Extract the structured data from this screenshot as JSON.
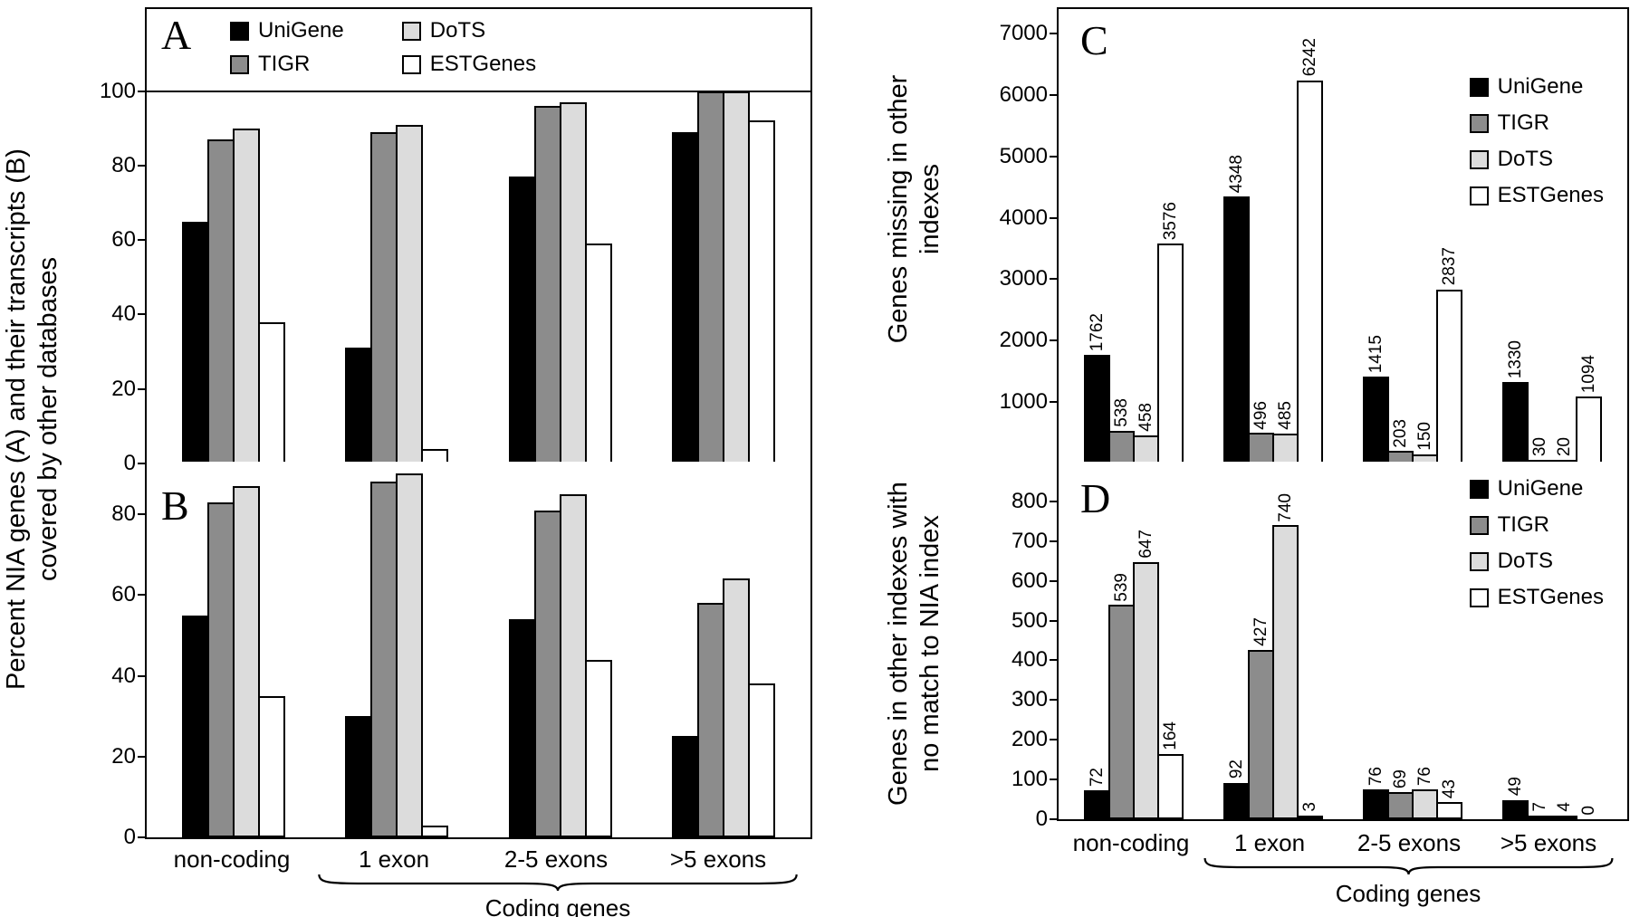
{
  "figure_labels": {
    "left_axis_line1": "Percent NIA genes (A) and their transcripts (B)",
    "left_axis_line2": "covered by other databases",
    "axis_c_line1": "Genes missing in other",
    "axis_c_line2": "indexes",
    "axis_d_line1": "Genes in other indexes with",
    "axis_d_line2": "no match to NIA index",
    "coding_genes": "Coding genes"
  },
  "categories": [
    "non-coding",
    "1 exon",
    "2-5 exons",
    ">5 exons"
  ],
  "legend_entries": [
    "UniGene",
    "TIGR",
    "DoTS",
    "ESTGenes"
  ],
  "series_colors": {
    "UniGene": "#000000",
    "TIGR": "#8c8c8c",
    "DoTS": "#dcdcdc",
    "ESTGenes": "#ffffff"
  },
  "chart_data": [
    {
      "id": "A",
      "panel_label": "A",
      "type": "bar",
      "title": "",
      "xlabel": "",
      "ylabel": "Percent NIA genes (A) and their transcripts (B) covered by other databases",
      "categories": [
        "non-coding",
        "1 exon",
        "2-5 exons",
        ">5 exons"
      ],
      "yticks": [
        0,
        20,
        40,
        60,
        80,
        100
      ],
      "ylim": [
        0,
        122
      ],
      "ref_line": 100,
      "value_labels": false,
      "legend": "top",
      "legend_position": "top inside plot, two columns",
      "grid": false,
      "series": [
        {
          "name": "UniGene",
          "color": "#000000",
          "values": [
            65,
            31,
            77,
            89
          ]
        },
        {
          "name": "TIGR",
          "color": "#8c8c8c",
          "values": [
            87,
            89,
            96,
            100
          ]
        },
        {
          "name": "DoTS",
          "color": "#dcdcdc",
          "values": [
            90,
            91,
            97,
            100
          ]
        },
        {
          "name": "ESTGenes",
          "color": "#ffffff",
          "values": [
            38,
            4,
            59,
            92
          ]
        }
      ]
    },
    {
      "id": "B",
      "panel_label": "B",
      "type": "bar",
      "title": "",
      "xlabel": "",
      "ylabel": "Percent NIA genes (A) and their transcripts (B) covered by other databases",
      "categories": [
        "non-coding",
        "1 exon",
        "2-5 exons",
        ">5 exons"
      ],
      "yticks": [
        0,
        20,
        40,
        60,
        80
      ],
      "ylim": [
        0,
        93
      ],
      "ref_line": null,
      "value_labels": false,
      "legend": null,
      "grid": false,
      "series": [
        {
          "name": "UniGene",
          "color": "#000000",
          "values": [
            55,
            30,
            54,
            25
          ]
        },
        {
          "name": "TIGR",
          "color": "#8c8c8c",
          "values": [
            83,
            88,
            81,
            58
          ]
        },
        {
          "name": "DoTS",
          "color": "#dcdcdc",
          "values": [
            87,
            90,
            85,
            64
          ]
        },
        {
          "name": "ESTGenes",
          "color": "#ffffff",
          "values": [
            35,
            3,
            44,
            38
          ]
        }
      ]
    },
    {
      "id": "C",
      "panel_label": "C",
      "type": "bar",
      "title": "",
      "xlabel": "",
      "ylabel": "Genes missing in other indexes",
      "categories": [
        "non-coding",
        "1 exon",
        "2-5 exons",
        ">5 exons"
      ],
      "yticks": [
        1000,
        2000,
        3000,
        4000,
        5000,
        6000,
        7000
      ],
      "ylim": [
        0,
        7400
      ],
      "ref_line": null,
      "value_labels": true,
      "legend": "right",
      "legend_position": "upper right inside plot",
      "grid": false,
      "series": [
        {
          "name": "UniGene",
          "color": "#000000",
          "values": [
            1762,
            4348,
            1415,
            1330
          ]
        },
        {
          "name": "TIGR",
          "color": "#8c8c8c",
          "values": [
            538,
            496,
            203,
            30
          ]
        },
        {
          "name": "DoTS",
          "color": "#dcdcdc",
          "values": [
            458,
            485,
            150,
            20
          ]
        },
        {
          "name": "ESTGenes",
          "color": "#ffffff",
          "values": [
            3576,
            6242,
            2837,
            1094
          ]
        }
      ]
    },
    {
      "id": "D",
      "panel_label": "D",
      "type": "bar",
      "title": "",
      "xlabel": "",
      "ylabel": "Genes in other indexes with no match to NIA index",
      "categories": [
        "non-coding",
        "1 exon",
        "2-5 exons",
        ">5 exons"
      ],
      "yticks": [
        0,
        100,
        200,
        300,
        400,
        500,
        600,
        700,
        800
      ],
      "ylim": [
        0,
        900
      ],
      "ref_line": null,
      "value_labels": true,
      "legend": "right",
      "legend_position": "upper right inside plot",
      "grid": false,
      "series": [
        {
          "name": "UniGene",
          "color": "#000000",
          "values": [
            72,
            92,
            76,
            49
          ]
        },
        {
          "name": "TIGR",
          "color": "#8c8c8c",
          "values": [
            539,
            427,
            69,
            7
          ]
        },
        {
          "name": "DoTS",
          "color": "#dcdcdc",
          "values": [
            647,
            740,
            76,
            4
          ]
        },
        {
          "name": "ESTGenes",
          "color": "#ffffff",
          "values": [
            164,
            3,
            43,
            0
          ]
        }
      ]
    }
  ]
}
